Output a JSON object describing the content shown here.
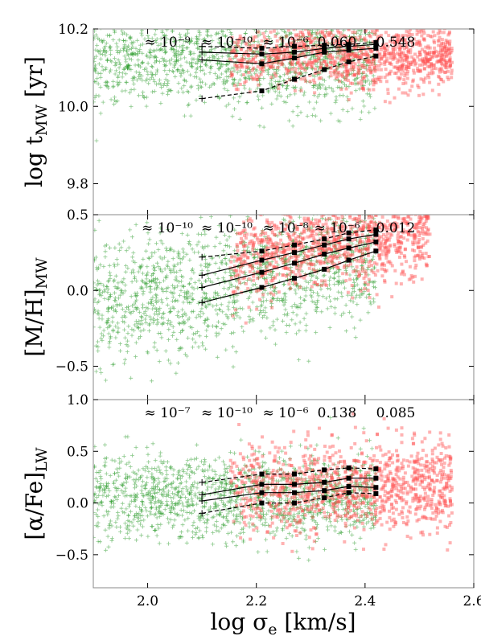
{
  "chart_data": [
    {
      "type": "scatter",
      "xlim": [
        1.9,
        2.6
      ],
      "ylim": [
        9.72,
        10.2
      ],
      "ylabel_main": "log t",
      "ylabel_sub": "MW",
      "ylabel_tail": " [yr]",
      "ytick_values": [
        9.8,
        10.0,
        10.2
      ],
      "yticks": [
        "9.8",
        "10.0",
        "10.2"
      ],
      "annotations": [
        "≈ 10⁻⁹",
        "≈ 10⁻¹⁰",
        "≈ 10⁻⁶",
        "0.060",
        "0.548"
      ],
      "series": [
        {
          "color": "#2a9b2a",
          "marker": "plus",
          "x_range": [
            1.9,
            2.42
          ],
          "y_center": 10.12,
          "y_spread": 0.06
        },
        {
          "color": "#ff5555",
          "marker": "square",
          "x_range": [
            2.15,
            2.56
          ],
          "y_center": 10.13,
          "y_spread": 0.04
        }
      ],
      "trend_lines": [
        {
          "style": "dashed",
          "x": [
            2.1,
            2.21,
            2.27,
            2.325,
            2.37,
            2.42
          ],
          "y": [
            10.02,
            10.04,
            10.07,
            10.095,
            10.115,
            10.13
          ]
        },
        {
          "style": "solid",
          "x": [
            2.1,
            2.21,
            2.27,
            2.325,
            2.37,
            2.42
          ],
          "y": [
            10.12,
            10.11,
            10.125,
            10.14,
            10.145,
            10.15
          ]
        },
        {
          "style": "solid",
          "x": [
            2.1,
            2.21,
            2.27,
            2.325,
            2.37,
            2.42
          ],
          "y": [
            10.14,
            10.135,
            10.14,
            10.15,
            10.155,
            10.16
          ]
        },
        {
          "style": "dashed",
          "x": [
            2.1,
            2.21,
            2.27,
            2.325,
            2.37,
            2.42
          ],
          "y": [
            10.155,
            10.15,
            10.155,
            10.158,
            10.16,
            10.165
          ]
        }
      ]
    },
    {
      "type": "scatter",
      "xlim": [
        1.9,
        2.6
      ],
      "ylim": [
        -0.72,
        0.5
      ],
      "ylabel_main": "[M/H]",
      "ylabel_sub": "MW",
      "ylabel_tail": "",
      "ytick_values": [
        -0.5,
        0.0,
        0.5
      ],
      "yticks": [
        "−0.5",
        "0.0",
        "0.5"
      ],
      "annotations": [
        "≈ 10⁻¹⁰",
        "≈ 10⁻¹⁰",
        "≈ 10⁻⁸",
        "≈ 10⁻⁶",
        "0.012"
      ],
      "series": [
        {
          "color": "#2a9b2a",
          "marker": "plus",
          "x_range": [
            1.9,
            2.42
          ],
          "y_center": 0.12,
          "y_spread": 0.2
        },
        {
          "color": "#ff5555",
          "marker": "square",
          "x_range": [
            2.15,
            2.52
          ],
          "y_center": 0.25,
          "y_spread": 0.14
        }
      ],
      "trend_lines": [
        {
          "style": "solid",
          "x": [
            2.1,
            2.21,
            2.27,
            2.325,
            2.37,
            2.42
          ],
          "y": [
            -0.08,
            0.02,
            0.08,
            0.14,
            0.2,
            0.26
          ]
        },
        {
          "style": "solid",
          "x": [
            2.1,
            2.21,
            2.27,
            2.325,
            2.37,
            2.42
          ],
          "y": [
            0.02,
            0.12,
            0.18,
            0.24,
            0.28,
            0.32
          ]
        },
        {
          "style": "solid",
          "x": [
            2.1,
            2.21,
            2.27,
            2.325,
            2.37,
            2.42
          ],
          "y": [
            0.1,
            0.2,
            0.25,
            0.3,
            0.34,
            0.37
          ]
        },
        {
          "style": "dashed",
          "x": [
            2.1,
            2.21,
            2.27,
            2.325,
            2.37,
            2.42
          ],
          "y": [
            0.22,
            0.26,
            0.3,
            0.34,
            0.38,
            0.4
          ]
        }
      ]
    },
    {
      "type": "scatter",
      "xlim": [
        1.9,
        2.6
      ],
      "ylim": [
        -0.82,
        1.0
      ],
      "ylabel_main": "[α/Fe]",
      "ylabel_sub": "LW",
      "ylabel_tail": "",
      "ytick_values": [
        -0.5,
        0.0,
        0.5,
        1.0
      ],
      "yticks": [
        "−0.5",
        "0.0",
        "0.5",
        "1.0"
      ],
      "xtick_values": [
        2.0,
        2.2,
        2.4,
        2.6
      ],
      "xticks": [
        "2.0",
        "2.2",
        "2.4",
        "2.6"
      ],
      "xlabel_main": "log σ",
      "xlabel_sub": "e",
      "xlabel_tail": " [km/s]",
      "annotations": [
        "≈ 10⁻⁷",
        "≈ 10⁻¹⁰",
        "≈ 10⁻⁶",
        "0.138",
        "0.085"
      ],
      "series": [
        {
          "color": "#2a9b2a",
          "marker": "plus",
          "x_range": [
            1.9,
            2.42
          ],
          "y_center": 0.06,
          "y_spread": 0.2
        },
        {
          "color": "#ff5555",
          "marker": "square",
          "x_range": [
            2.15,
            2.56
          ],
          "y_center": 0.16,
          "y_spread": 0.22
        }
      ],
      "trend_lines": [
        {
          "style": "dashed",
          "x": [
            2.1,
            2.21,
            2.27,
            2.325,
            2.37,
            2.42
          ],
          "y": [
            -0.1,
            0.0,
            0.0,
            0.05,
            0.1,
            0.09
          ]
        },
        {
          "style": "solid",
          "x": [
            2.1,
            2.21,
            2.27,
            2.325,
            2.37,
            2.42
          ],
          "y": [
            0.02,
            0.1,
            0.1,
            0.12,
            0.16,
            0.15
          ]
        },
        {
          "style": "solid",
          "x": [
            2.1,
            2.21,
            2.27,
            2.325,
            2.37,
            2.42
          ],
          "y": [
            0.08,
            0.18,
            0.18,
            0.2,
            0.24,
            0.24
          ]
        },
        {
          "style": "dashed",
          "x": [
            2.1,
            2.21,
            2.27,
            2.325,
            2.37,
            2.42
          ],
          "y": [
            0.2,
            0.28,
            0.28,
            0.32,
            0.34,
            0.33
          ]
        }
      ]
    }
  ]
}
